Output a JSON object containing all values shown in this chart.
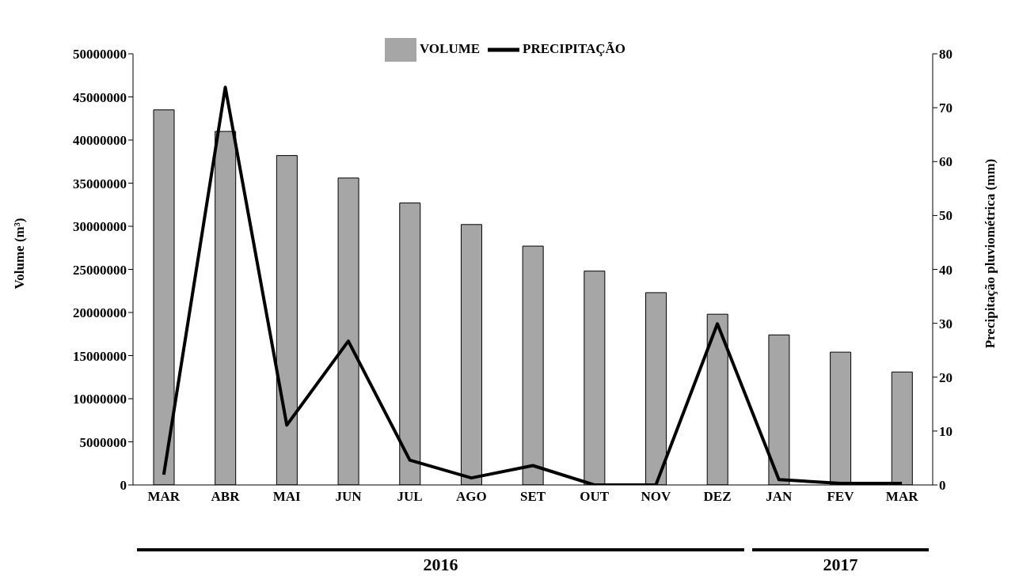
{
  "chart_data": {
    "type": "bar",
    "categories": [
      "MAR",
      "ABR",
      "MAI",
      "JUN",
      "JUL",
      "AGO",
      "SET",
      "OUT",
      "NOV",
      "DEZ",
      "JAN",
      "FEV",
      "MAR"
    ],
    "series": [
      {
        "name": "VOLUME",
        "color": "#a6a6a6",
        "values": [
          43500000,
          41000000,
          38200000,
          35600000,
          32700000,
          30200000,
          27700000,
          24800000,
          22300000,
          19800000,
          17400000,
          15400000,
          13100000
        ]
      },
      {
        "name": "PRECIPITAÇÃO",
        "type": "line",
        "axis": "y2",
        "color": "#000000",
        "values": [
          1.9,
          73.8,
          11.1,
          26.7,
          4.6,
          1.3,
          3.6,
          0,
          0,
          29.9,
          1.0,
          0.3,
          0.3
        ]
      }
    ],
    "ylabel": "Volume (m³)",
    "y2label": "Precipitação pluviométrica (mm)",
    "ylim": [
      0,
      50000000
    ],
    "yticks": [
      0,
      5000000,
      10000000,
      15000000,
      20000000,
      25000000,
      30000000,
      35000000,
      40000000,
      45000000,
      50000000
    ],
    "y2lim": [
      0,
      80
    ],
    "y2ticks": [
      0,
      10,
      20,
      30,
      40,
      50,
      60,
      70,
      80
    ],
    "annotations": [
      "2016",
      "2017"
    ],
    "legend": "top",
    "grid": false,
    "marker": "none",
    "line_style": "solid"
  }
}
